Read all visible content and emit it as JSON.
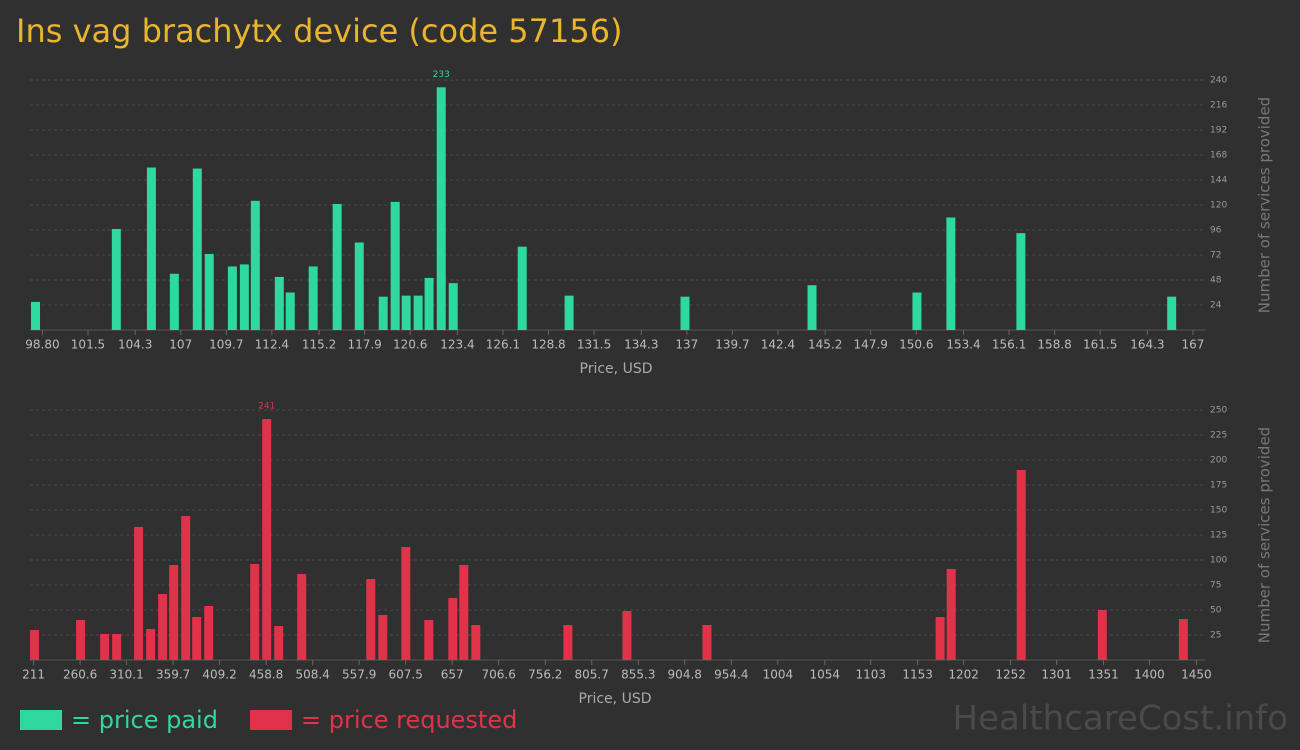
{
  "title": "Ins vag brachytx device (code 57156)",
  "watermark": "HealthcareCost.info",
  "chart_data": [
    {
      "type": "bar",
      "x": [
        98.39,
        103.18,
        105.26,
        106.62,
        107.98,
        108.69,
        110.06,
        110.77,
        111.42,
        112.84,
        113.49,
        114.85,
        116.27,
        117.58,
        119.0,
        119.71,
        120.36,
        121.07,
        121.72,
        122.44,
        123.15,
        127.24,
        130.02,
        136.89,
        144.42,
        150.64,
        152.65,
        156.8,
        165.74
      ],
      "series": [
        {
          "name": "= price paid",
          "color": "#2ed89e",
          "values": [
            27,
            97,
            156,
            54,
            155,
            73,
            61,
            63,
            124,
            51,
            36,
            61,
            121,
            84,
            32,
            123,
            33,
            33,
            50,
            233,
            45,
            80,
            33,
            32,
            43,
            36,
            108,
            93,
            32
          ]
        }
      ],
      "xlim": [
        98.3,
        167.3
      ],
      "xticks": [
        {
          "value": 98.8,
          "label": "98.80"
        },
        101.5,
        104.3,
        107,
        109.7,
        112.4,
        115.2,
        117.9,
        120.6,
        123.4,
        126.1,
        128.8,
        131.5,
        134.3,
        137,
        139.7,
        142.4,
        145.2,
        147.9,
        150.6,
        153.4,
        156.1,
        158.8,
        161.5,
        164.3,
        167
      ],
      "ylim": [
        0,
        240
      ],
      "yticks": [
        24,
        48,
        72,
        96,
        120,
        144,
        168,
        192,
        216,
        240
      ],
      "x_label": "Price, USD",
      "y_label": "Number of services provided",
      "grid": true
    },
    {
      "type": "bar",
      "x": [
        212,
        261.1,
        286.7,
        299.5,
        322.9,
        335.7,
        348.5,
        360.3,
        373.1,
        384.8,
        397.6,
        446.6,
        459.4,
        472.2,
        496.7,
        570.3,
        583.1,
        607.6,
        632.1,
        657.7,
        669.4,
        682.2,
        780.3,
        843.2,
        928.5,
        1176.9,
        1188.7,
        1263.3,
        1349.7,
        1436.1
      ],
      "series": [
        {
          "name": "= price requested",
          "color": "#e0334a",
          "values": [
            30,
            40,
            26,
            26,
            133,
            31,
            66,
            95,
            144,
            43,
            54,
            96,
            241,
            34,
            86,
            81,
            45,
            113,
            40,
            62,
            95,
            35,
            35,
            49,
            35,
            43,
            91,
            190,
            50,
            41
          ]
        }
      ],
      "xlim": [
        204,
        1457
      ],
      "xticks": [
        211,
        260.6,
        310.1,
        359.7,
        409.2,
        458.8,
        508.4,
        557.9,
        607.5,
        657,
        706.6,
        756.2,
        805.7,
        855.3,
        904.8,
        954.4,
        1004,
        1054,
        1103,
        1153,
        1202,
        1252,
        1301,
        1351,
        1400,
        1450
      ],
      "ylim": [
        0,
        250
      ],
      "yticks": [
        25,
        50,
        75,
        100,
        125,
        150,
        175,
        200,
        225,
        250
      ],
      "x_label": "Price, USD",
      "y_label": "Number of services provided",
      "grid": true
    }
  ]
}
